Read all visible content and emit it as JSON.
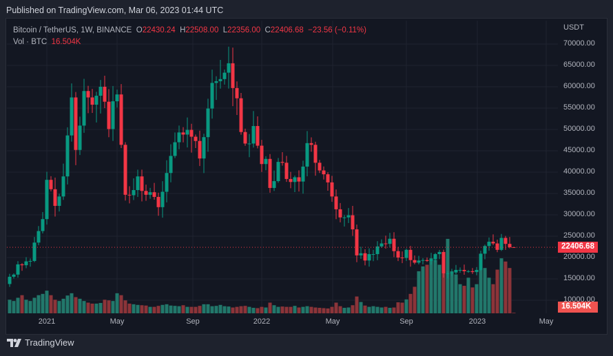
{
  "header": {
    "published": "Published on TradingView.com, Mar 06, 2023 01:44 UTC"
  },
  "legend": {
    "symbol": "Bitcoin / TetherUS, 1W, BINANCE",
    "o_label": "O",
    "o": "22430.24",
    "h_label": "H",
    "h": "22508.00",
    "l_label": "L",
    "l": "22356.00",
    "c_label": "C",
    "c": "22406.68",
    "change": "−23.56 (−0.11%)",
    "vol_label": "Vol · BTC",
    "vol": "16.504K"
  },
  "axis": {
    "currency": "USDT",
    "price_ticks": [
      "70000.00",
      "65000.00",
      "60000.00",
      "55000.00",
      "50000.00",
      "45000.00",
      "40000.00",
      "35000.00",
      "30000.00",
      "25000.00",
      "20000.00",
      "15000.00",
      "10000.00"
    ],
    "time_ticks": [
      "2021",
      "May",
      "Sep",
      "2022",
      "May",
      "Sep",
      "2023",
      "May"
    ],
    "last_price": "22406.68",
    "last_volume": "16.504K"
  },
  "colors": {
    "up": "#089981",
    "down": "#f23645",
    "up_vol": "#22786b",
    "down_vol": "#8c3439"
  },
  "footer": {
    "brand": "TradingView"
  },
  "chart_data": {
    "type": "candlestick",
    "title": "Bitcoin / TetherUS, 1W, BINANCE",
    "interval": "1W",
    "start": "2020-11-02",
    "ylim": [
      10000,
      70000
    ],
    "first_open": 13800,
    "closes": [
      15500,
      16000,
      18400,
      18200,
      19100,
      19200,
      23500,
      26200,
      29000,
      38200,
      36000,
      32100,
      34300,
      39000,
      48600,
      57500,
      45200,
      50900,
      59000,
      57500,
      55800,
      57900,
      60000,
      56500,
      50100,
      56600,
      58200,
      46400,
      34700,
      34600,
      35800,
      39000,
      35600,
      34700,
      35300,
      34200,
      31800,
      35400,
      39800,
      43800,
      47000,
      49300,
      48800,
      49900,
      48300,
      47300,
      43200,
      48200,
      54900,
      60900,
      61300,
      61800,
      63300,
      65500,
      59700,
      57300,
      49400,
      46700,
      46700,
      50800,
      46200,
      41900,
      43100,
      36300,
      37900,
      42400,
      42200,
      38400,
      37700,
      38800,
      37800,
      41300,
      46800,
      46400,
      42200,
      40400,
      39500,
      37600,
      34300,
      31300,
      29400,
      29400,
      29900,
      26600,
      20500,
      21000,
      19300,
      20800,
      20800,
      22600,
      23300,
      23200,
      24400,
      21500,
      20000,
      19900,
      21800,
      19400,
      18800,
      19300,
      19400,
      19200,
      19600,
      20800,
      21300,
      16300,
      16300,
      16500,
      17100,
      17100,
      16800,
      16800,
      16600,
      17100,
      20900,
      22700,
      23700,
      23300,
      21800,
      24600,
      23200,
      22430,
      22406.68
    ],
    "last": {
      "open": 22430.24,
      "high": 22508,
      "low": 22356,
      "close": 22406.68
    },
    "volumes_k": [
      420,
      380,
      480,
      560,
      420,
      380,
      480,
      560,
      600,
      700,
      560,
      420,
      380,
      450,
      550,
      620,
      500,
      450,
      380,
      330,
      300,
      300,
      320,
      420,
      400,
      380,
      620,
      560,
      400,
      300,
      280,
      260,
      250,
      240,
      200,
      200,
      230,
      260,
      280,
      240,
      230,
      220,
      250,
      200,
      200,
      200,
      230,
      280,
      280,
      220,
      230,
      260,
      220,
      210,
      180,
      200,
      220,
      230,
      200,
      170,
      160,
      200,
      180,
      330,
      250,
      200,
      210,
      200,
      200,
      230,
      180,
      200,
      220,
      200,
      180,
      170,
      160,
      150,
      200,
      330,
      220,
      170,
      180,
      250,
      520,
      350,
      240,
      200,
      220,
      200,
      180,
      200,
      170,
      180,
      340,
      330,
      430,
      600,
      820,
      1300,
      1450,
      1500,
      1700,
      1650,
      1500,
      1400,
      2300,
      1300,
      1200,
      900,
      850,
      1100,
      800,
      900,
      1500,
      1400,
      1100,
      900,
      1350,
      1700,
      1600,
      1400,
      16.5
    ]
  }
}
